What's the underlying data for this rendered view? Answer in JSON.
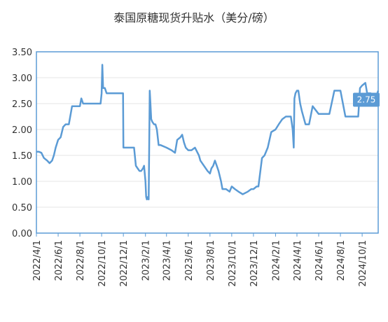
{
  "chart_data": {
    "type": "line",
    "title": "泰国原糖现货升贴水（美分/磅）",
    "xlabel": "",
    "ylabel": "",
    "ylim": [
      0,
      3.5
    ],
    "yticks": [
      "0.00",
      "0.50",
      "1.00",
      "1.50",
      "2.00",
      "2.50",
      "3.00",
      "3.50"
    ],
    "xlim": [
      "2022-04-01",
      "2024-11-15"
    ],
    "xticks": [
      "2022/4/1",
      "2022/6/1",
      "2022/8/1",
      "2022/10/1",
      "2022/12/1",
      "2023/2/1",
      "2023/4/1",
      "2023/6/1",
      "2023/8/1",
      "2023/10/1",
      "2023/12/1",
      "2024/2/1",
      "2024/4/1",
      "2024/6/1",
      "2024/8/1",
      "2024/10/1"
    ],
    "last_value_label": "2.75",
    "color": "#5b9bd5",
    "series": [
      {
        "name": "",
        "x": [
          "2022-04-01",
          "2022-04-08",
          "2022-04-15",
          "2022-04-22",
          "2022-05-01",
          "2022-05-08",
          "2022-05-15",
          "2022-05-20",
          "2022-05-25",
          "2022-06-01",
          "2022-06-08",
          "2022-06-15",
          "2022-06-22",
          "2022-07-01",
          "2022-07-10",
          "2022-07-15",
          "2022-07-20",
          "2022-08-01",
          "2022-08-05",
          "2022-08-10",
          "2022-08-20",
          "2022-09-01",
          "2022-09-15",
          "2022-09-28",
          "2022-10-01",
          "2022-10-03",
          "2022-10-05",
          "2022-10-10",
          "2022-10-15",
          "2022-11-01",
          "2022-11-15",
          "2022-11-30",
          "2022-12-01",
          "2022-12-15",
          "2022-12-31",
          "2023-01-05",
          "2023-01-10",
          "2023-01-15",
          "2023-01-20",
          "2023-01-25",
          "2023-01-28",
          "2023-02-01",
          "2023-02-03",
          "2023-02-05",
          "2023-02-08",
          "2023-02-10",
          "2023-02-13",
          "2023-02-15",
          "2023-02-17",
          "2023-02-20",
          "2023-02-25",
          "2023-03-01",
          "2023-03-05",
          "2023-03-10",
          "2023-03-15",
          "2023-04-01",
          "2023-04-15",
          "2023-04-25",
          "2023-05-01",
          "2023-05-10",
          "2023-05-15",
          "2023-05-20",
          "2023-05-25",
          "2023-06-01",
          "2023-06-10",
          "2023-06-20",
          "2023-07-01",
          "2023-07-05",
          "2023-07-15",
          "2023-07-25",
          "2023-08-01",
          "2023-08-05",
          "2023-08-10",
          "2023-08-15",
          "2023-08-20",
          "2023-08-25",
          "2023-09-01",
          "2023-09-05",
          "2023-09-15",
          "2023-09-25",
          "2023-10-01",
          "2023-10-10",
          "2023-10-20",
          "2023-11-01",
          "2023-11-15",
          "2023-11-25",
          "2023-12-01",
          "2023-12-10",
          "2023-12-15",
          "2023-12-25",
          "2024-01-01",
          "2024-01-10",
          "2024-01-20",
          "2024-02-01",
          "2024-02-10",
          "2024-02-20",
          "2024-03-01",
          "2024-03-10",
          "2024-03-15",
          "2024-03-20",
          "2024-03-23",
          "2024-03-25",
          "2024-03-28",
          "2024-04-01",
          "2024-04-05",
          "2024-04-10",
          "2024-04-15",
          "2024-04-25",
          "2024-05-05",
          "2024-05-15",
          "2024-06-01",
          "2024-06-15",
          "2024-07-01",
          "2024-07-15",
          "2024-07-20",
          "2024-08-01",
          "2024-08-15",
          "2024-09-01",
          "2024-09-05",
          "2024-09-10",
          "2024-09-20",
          "2024-09-25",
          "2024-10-01",
          "2024-10-10",
          "2024-10-15",
          "2024-10-25",
          "2024-11-01",
          "2024-11-10",
          "2024-11-15"
        ],
        "values": [
          1.57,
          1.57,
          1.55,
          1.45,
          1.4,
          1.35,
          1.4,
          1.5,
          1.65,
          1.8,
          1.85,
          2.05,
          2.1,
          2.1,
          2.45,
          2.45,
          2.45,
          2.45,
          2.6,
          2.5,
          2.5,
          2.5,
          2.5,
          2.5,
          2.7,
          3.25,
          2.8,
          2.8,
          2.7,
          2.7,
          2.7,
          2.7,
          1.65,
          1.65,
          1.65,
          1.3,
          1.25,
          1.2,
          1.2,
          1.25,
          1.3,
          1.0,
          0.7,
          0.65,
          0.7,
          0.65,
          2.75,
          2.5,
          2.2,
          2.15,
          2.1,
          2.1,
          2.0,
          1.7,
          1.7,
          1.65,
          1.6,
          1.55,
          1.8,
          1.85,
          1.9,
          1.75,
          1.65,
          1.6,
          1.6,
          1.65,
          1.5,
          1.4,
          1.3,
          1.2,
          1.15,
          1.25,
          1.3,
          1.4,
          1.3,
          1.2,
          1.0,
          0.85,
          0.85,
          0.8,
          0.9,
          0.85,
          0.8,
          0.75,
          0.8,
          0.85,
          0.85,
          0.9,
          0.9,
          1.45,
          1.5,
          1.65,
          1.95,
          2.0,
          2.1,
          2.2,
          2.25,
          2.25,
          2.25,
          2.0,
          1.65,
          2.6,
          2.7,
          2.75,
          2.75,
          2.5,
          2.35,
          2.1,
          2.1,
          2.45,
          2.3,
          2.3,
          2.3,
          2.75,
          2.75,
          2.75,
          2.25,
          2.25,
          2.25,
          2.25,
          2.25,
          2.8,
          2.85,
          2.9,
          2.7,
          2.7,
          2.55,
          2.65,
          2.75
        ]
      }
    ]
  }
}
